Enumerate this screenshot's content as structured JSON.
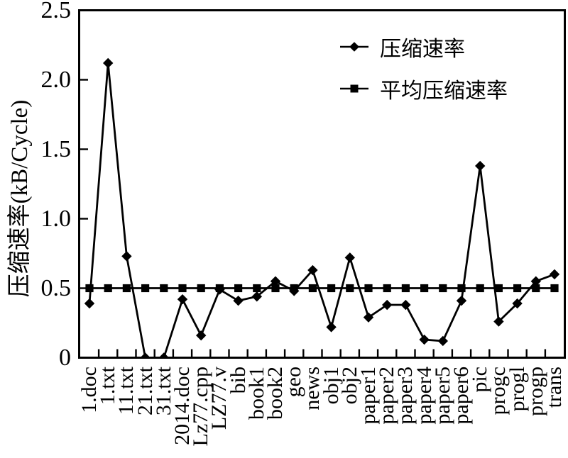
{
  "figure": {
    "background": "#ffffff",
    "ink_color": "#000000"
  },
  "chart_data": {
    "type": "line",
    "title": "",
    "xlabel": "",
    "ylabel": "压缩速率(kB/Cycle)",
    "ylim": [
      0,
      2.5
    ],
    "ytick_values": [
      0,
      0.5,
      1.0,
      1.5,
      2.0,
      2.5
    ],
    "ytick_labels": [
      "0",
      "0.5",
      "1.0",
      "1.5",
      "2.0",
      "2.5"
    ],
    "grid": false,
    "legend_position": "inside-top-right",
    "categories": [
      "1.doc",
      "1.txt",
      "11.txt",
      "21.txt",
      "31.txt",
      "2014.doc",
      "Lz77.cpp",
      "LZ77.v",
      "bib",
      "book1",
      "book2",
      "geo",
      "news",
      "obj1",
      "obj2",
      "paper1",
      "paper2",
      "paper3",
      "paper4",
      "paper5",
      "paper6",
      "pic",
      "progc",
      "progl",
      "progp",
      "trans"
    ],
    "series": [
      {
        "name": "压缩速率",
        "marker": "diamond",
        "values": [
          0.39,
          2.12,
          0.73,
          0.0,
          0.0,
          0.42,
          0.16,
          0.49,
          0.41,
          0.44,
          0.55,
          0.48,
          0.63,
          0.22,
          0.72,
          0.29,
          0.38,
          0.38,
          0.13,
          0.12,
          0.41,
          1.38,
          0.26,
          0.39,
          0.55,
          0.6
        ]
      },
      {
        "name": "平均压缩速率",
        "marker": "square",
        "values": [
          0.5,
          0.5,
          0.5,
          0.5,
          0.5,
          0.5,
          0.5,
          0.5,
          0.5,
          0.5,
          0.5,
          0.5,
          0.5,
          0.5,
          0.5,
          0.5,
          0.5,
          0.5,
          0.5,
          0.5,
          0.5,
          0.5,
          0.5,
          0.5,
          0.5,
          0.5
        ]
      }
    ]
  }
}
